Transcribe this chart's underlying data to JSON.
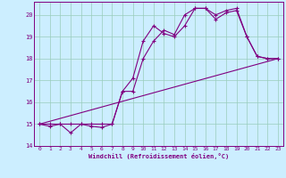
{
  "xlabel": "Windchill (Refroidissement éolien,°C)",
  "bg_color": "#cceeff",
  "line_color": "#800080",
  "grid_color": "#99ccbb",
  "xlim": [
    -0.5,
    23.5
  ],
  "ylim": [
    14.0,
    20.6
  ],
  "yticks": [
    14,
    15,
    16,
    17,
    18,
    19,
    20
  ],
  "xticks": [
    0,
    1,
    2,
    3,
    4,
    5,
    6,
    7,
    8,
    9,
    10,
    11,
    12,
    13,
    14,
    15,
    16,
    17,
    18,
    19,
    20,
    21,
    22,
    23
  ],
  "series1_x": [
    0,
    1,
    2,
    3,
    4,
    5,
    6,
    7,
    8,
    9,
    10,
    11,
    12,
    13,
    14,
    15,
    16,
    17,
    18,
    19,
    20,
    21,
    22,
    23
  ],
  "series1_y": [
    15.0,
    14.9,
    15.0,
    14.6,
    15.0,
    14.9,
    14.85,
    15.0,
    16.5,
    17.1,
    18.8,
    19.5,
    19.15,
    19.0,
    19.5,
    20.3,
    20.3,
    19.8,
    20.1,
    20.2,
    19.0,
    18.1,
    18.0,
    18.0
  ],
  "series2_x": [
    0,
    1,
    2,
    3,
    4,
    5,
    6,
    7,
    8,
    9,
    10,
    11,
    12,
    13,
    14,
    15,
    16,
    17,
    18,
    19,
    20,
    21,
    22,
    23
  ],
  "series2_y": [
    15.0,
    15.0,
    15.0,
    15.0,
    15.0,
    15.0,
    15.0,
    15.0,
    16.5,
    16.5,
    18.0,
    18.8,
    19.3,
    19.1,
    20.0,
    20.3,
    20.3,
    20.0,
    20.2,
    20.3,
    19.0,
    18.1,
    18.0,
    18.0
  ],
  "series3_x": [
    0,
    23
  ],
  "series3_y": [
    15.0,
    18.0
  ]
}
